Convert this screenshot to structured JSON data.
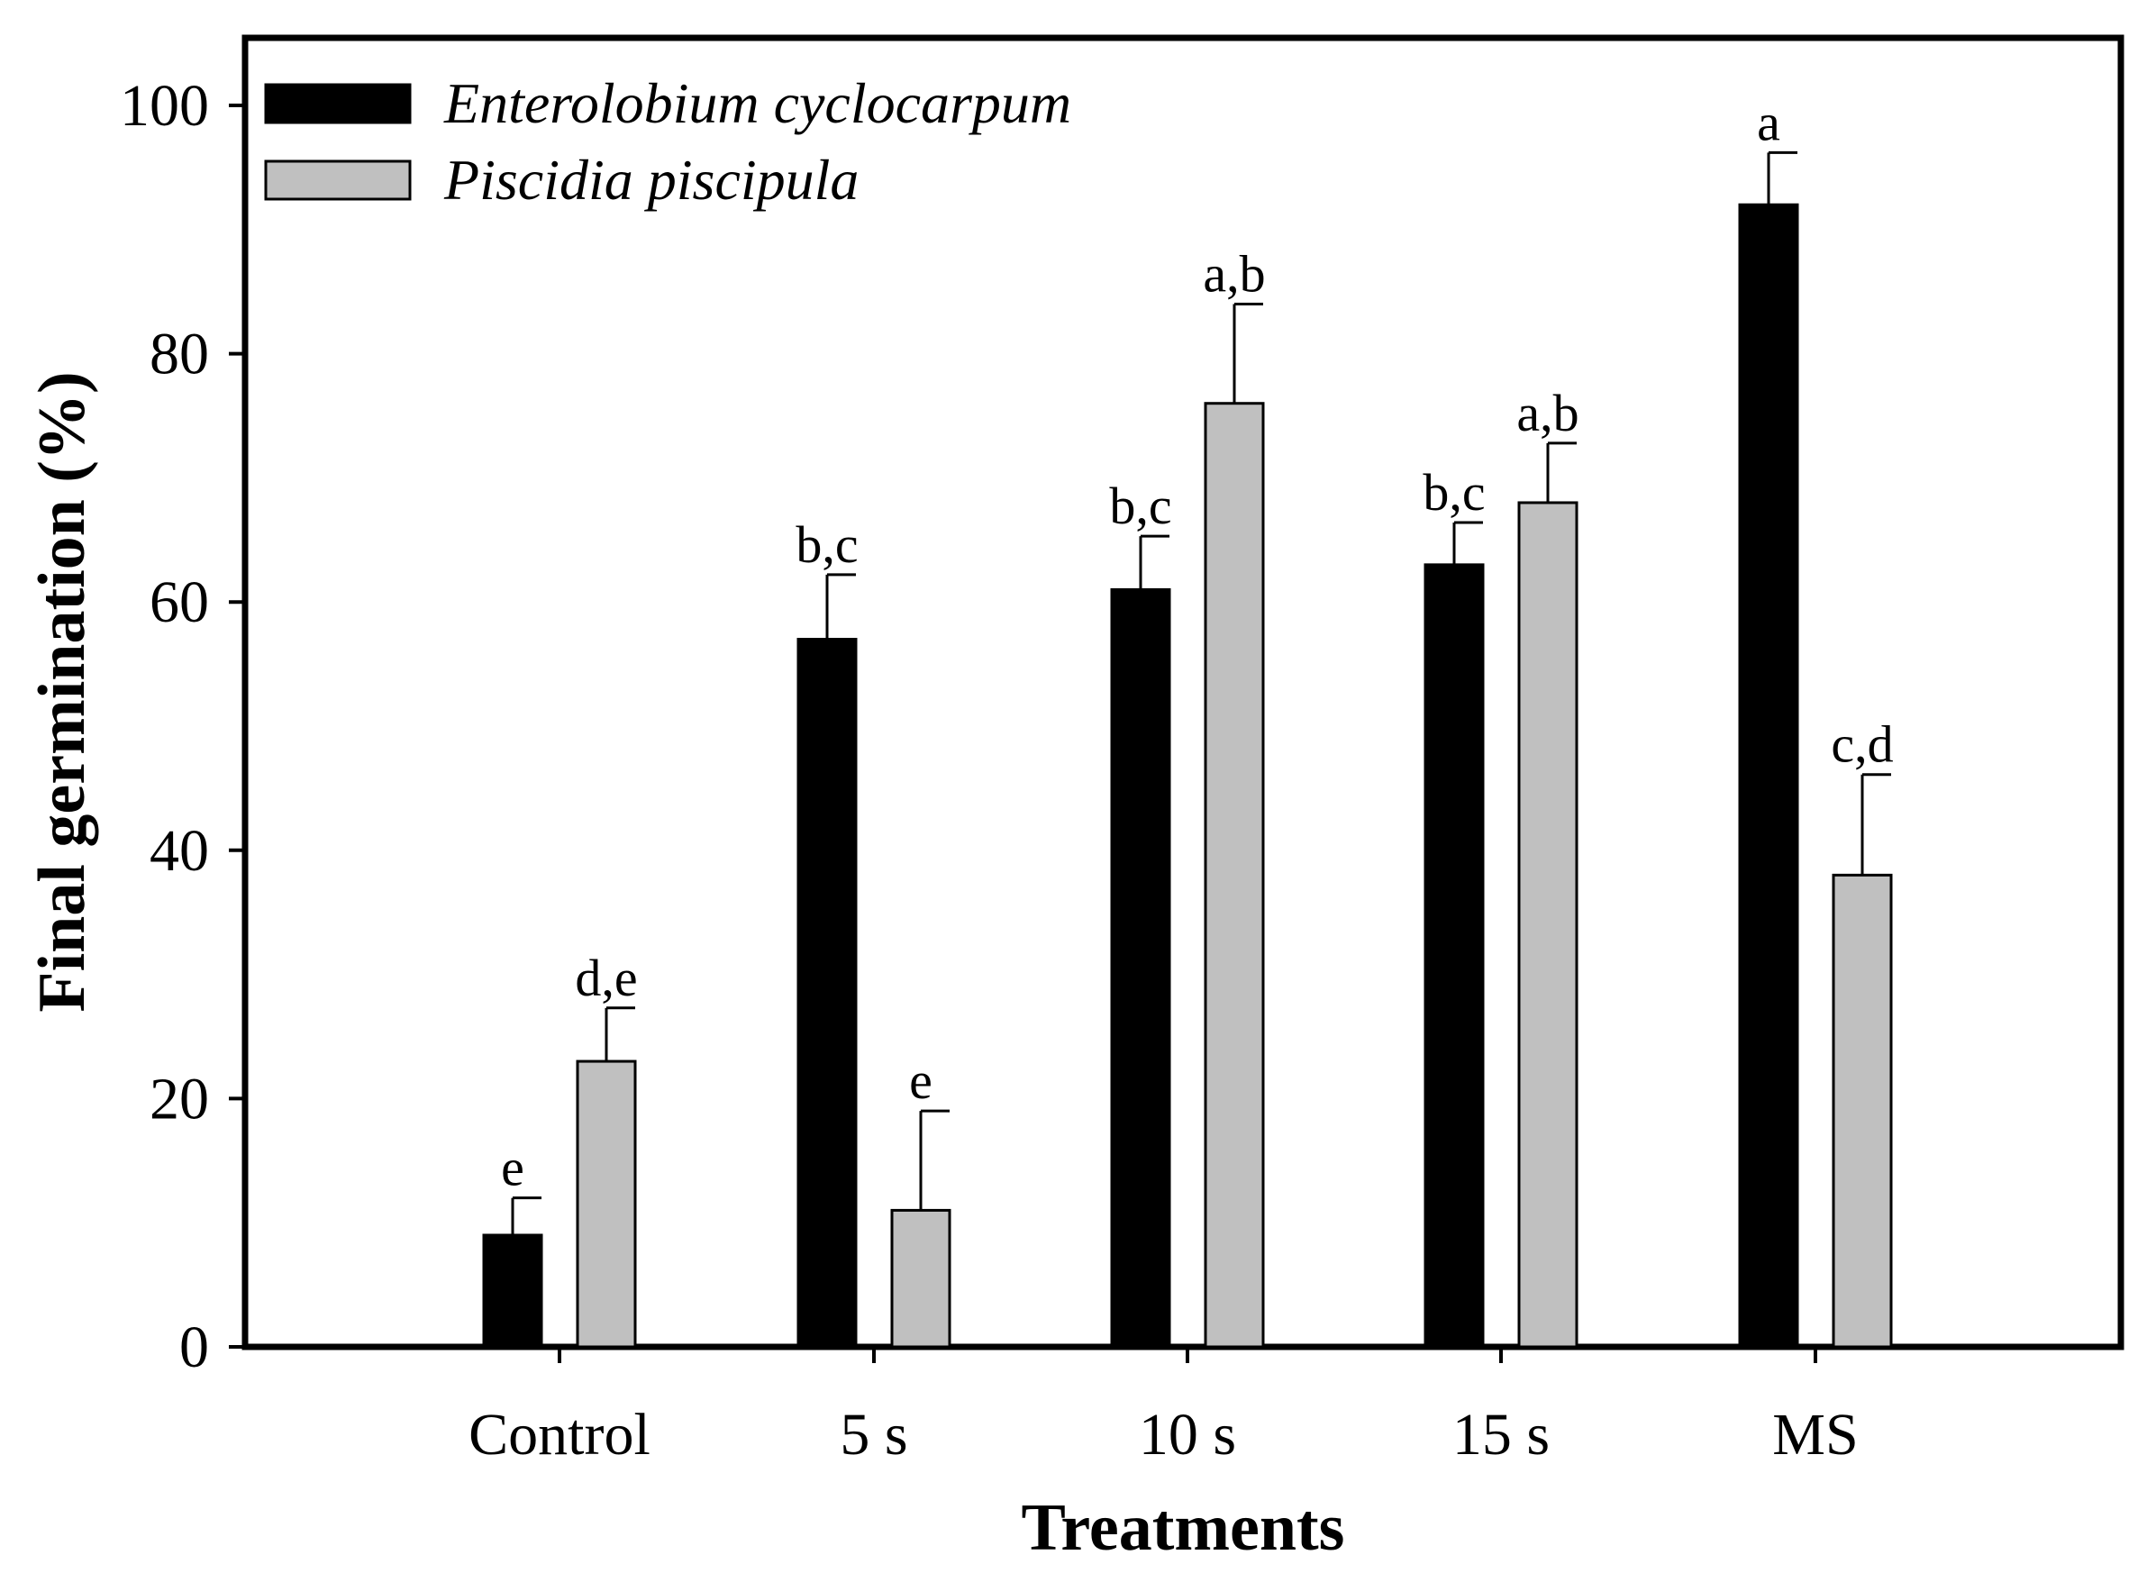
{
  "chart_data": {
    "type": "bar",
    "title": "",
    "xlabel": "Treatments",
    "ylabel": "Final germination (%)",
    "ylim": [
      0,
      100
    ],
    "yticks": [
      0,
      20,
      40,
      60,
      80,
      100
    ],
    "grid": false,
    "legend_position": "top-left",
    "categories": [
      "Control",
      "5 s",
      "10 s",
      "15 s",
      "MS"
    ],
    "series": [
      {
        "name": "Enterolobium cyclocarpum",
        "color": "#000000",
        "values": [
          9,
          57,
          61,
          63,
          92
        ],
        "errors": [
          3,
          5.2,
          4.3,
          3.4,
          4.2
        ],
        "letters": [
          "e",
          "b,c",
          "b,c",
          "b,c",
          "a"
        ]
      },
      {
        "name": "Piscidia piscipula",
        "color": "#c0c0c0",
        "values": [
          23,
          11,
          76,
          68,
          38
        ],
        "errors": [
          4.3,
          8,
          8,
          4.8,
          8.1
        ],
        "letters": [
          "d,e",
          "e",
          "a,b",
          "a,b",
          "c,d"
        ]
      }
    ]
  }
}
